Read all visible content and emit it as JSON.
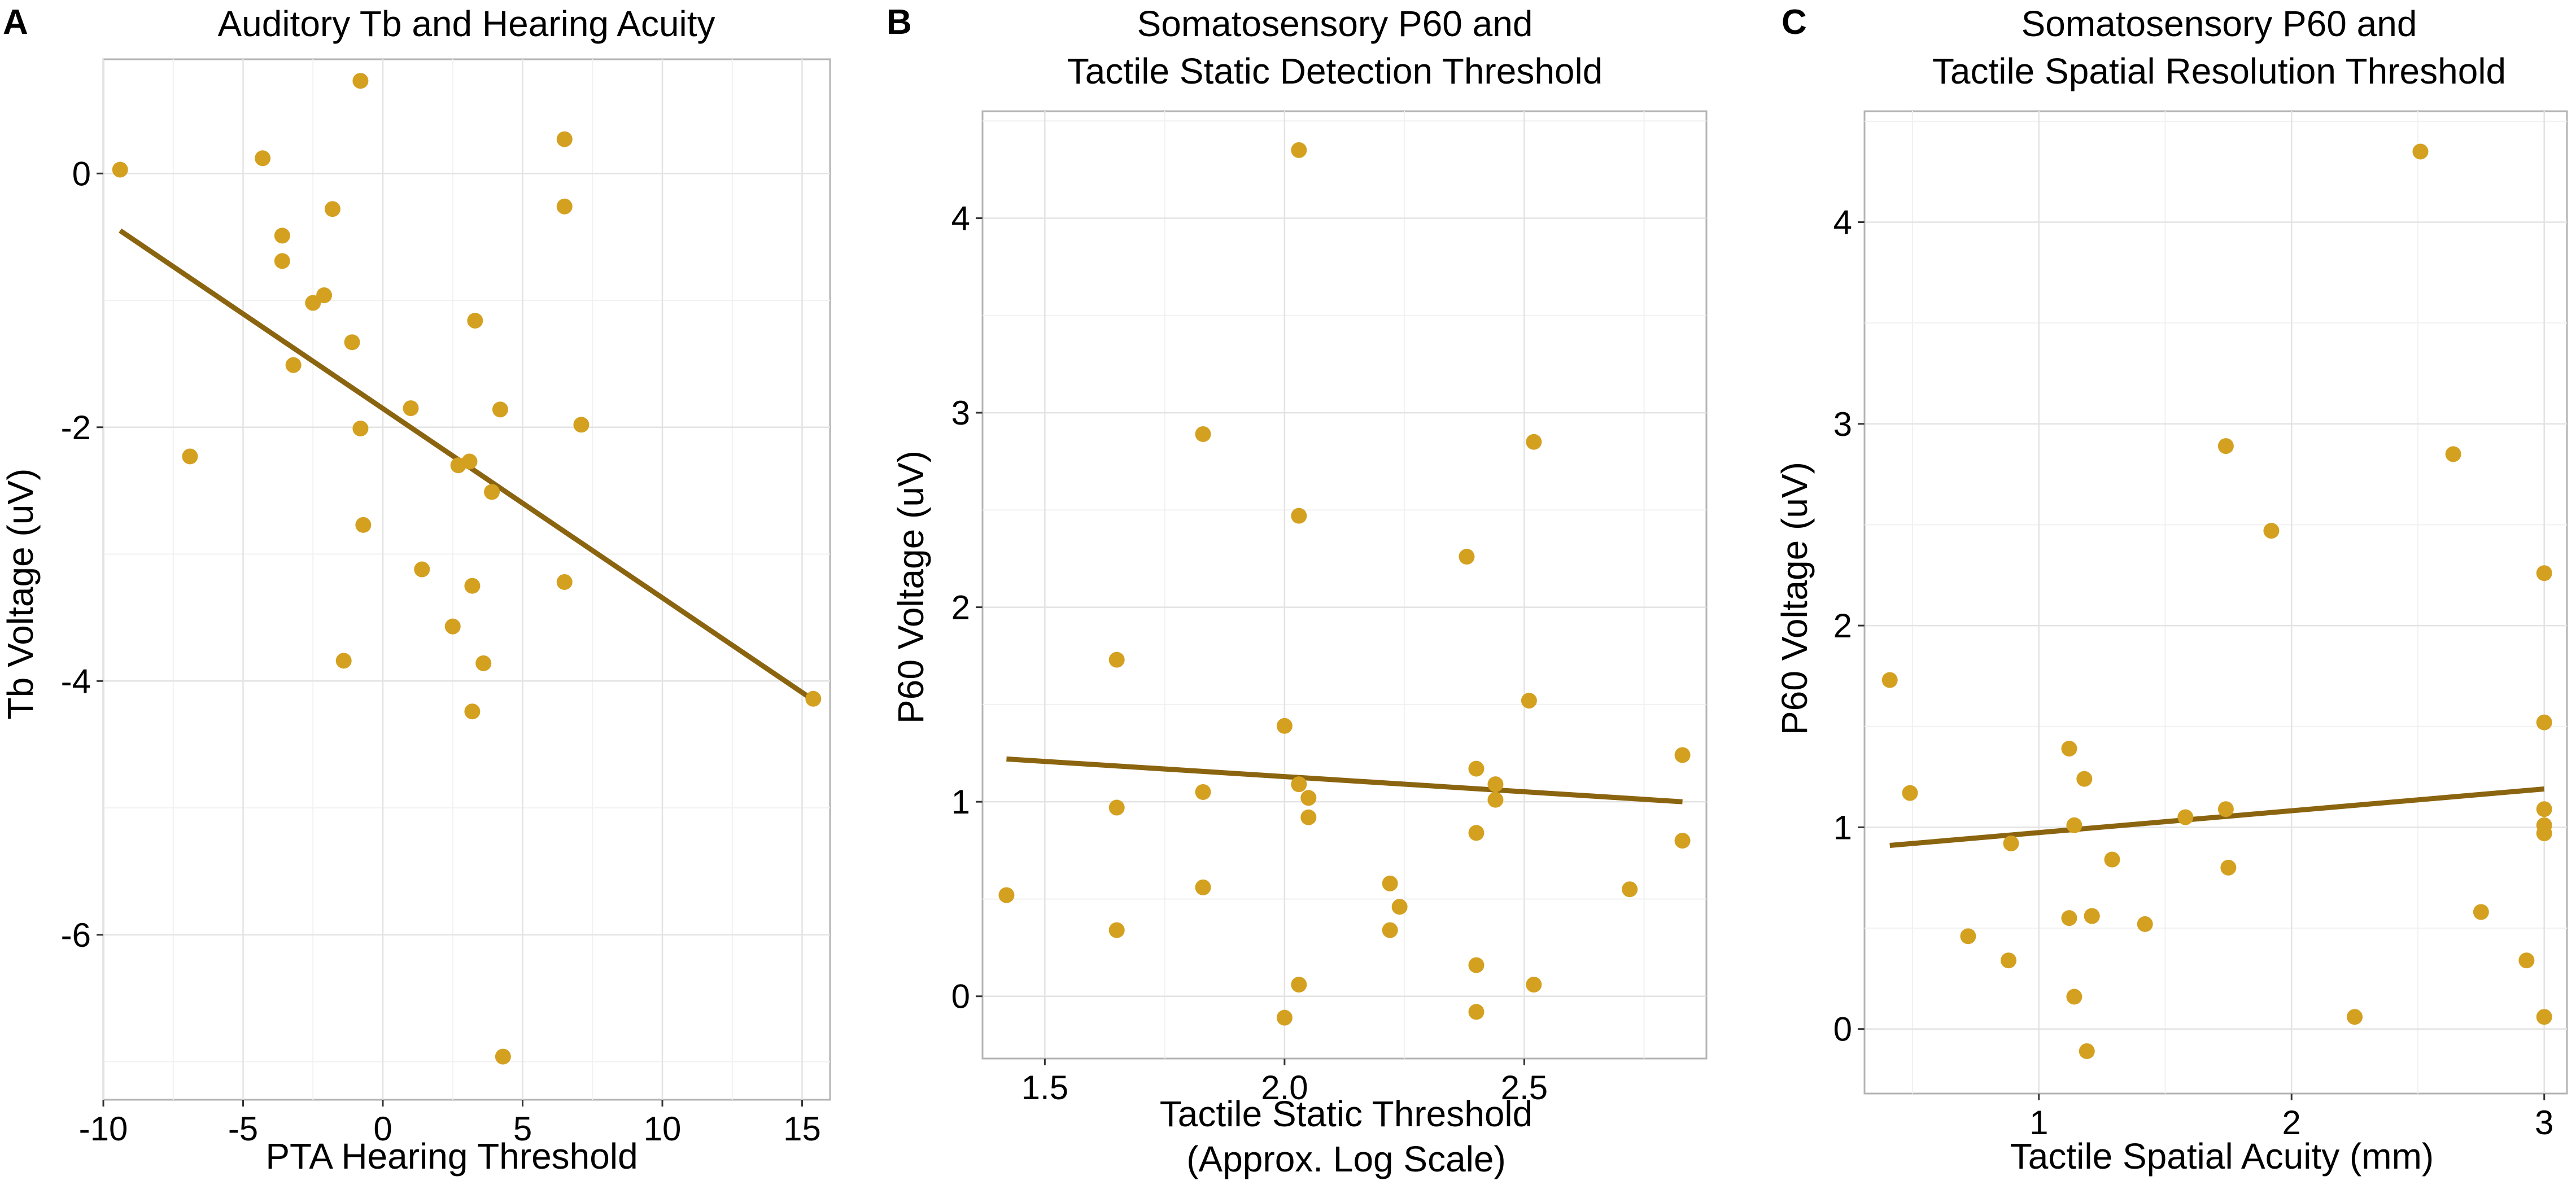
{
  "colors": {
    "point": "#D4A020",
    "line": "#8B6410"
  },
  "chart_data": [
    {
      "type": "scatter",
      "panel": "A",
      "title_lines": [
        "Auditory Tb and Hearing Acuity"
      ],
      "xlabel_lines": [
        "PTA Hearing Threshold"
      ],
      "ylabel": "Tb Voltage (uV)",
      "xlim": [
        -10,
        16
      ],
      "ylim": [
        -7.3,
        0.9
      ],
      "xticks": [
        -10,
        -5,
        0,
        5,
        10,
        15
      ],
      "xtick_labels": [
        "-10",
        "-5",
        "0",
        "5",
        "10",
        "15"
      ],
      "yticks": [
        -6,
        -4,
        -2,
        0
      ],
      "ytick_labels": [
        "-6",
        "-4",
        "-2",
        "0"
      ],
      "x": [
        -9.4,
        -6.9,
        -4.3,
        -3.6,
        -3.6,
        -3.2,
        -2.5,
        -2.1,
        -1.8,
        -1.4,
        -1.1,
        -0.8,
        -0.8,
        -0.7,
        1.0,
        1.4,
        2.5,
        2.7,
        3.1,
        3.2,
        3.2,
        3.3,
        3.6,
        3.9,
        4.2,
        4.3,
        6.5,
        6.5,
        6.5,
        7.1,
        15.4
      ],
      "y": [
        0.03,
        -2.23,
        0.12,
        -0.49,
        -0.69,
        -1.51,
        -1.02,
        -0.96,
        -0.28,
        -3.84,
        -1.33,
        0.73,
        -2.01,
        -2.77,
        -1.85,
        -3.12,
        -3.57,
        -2.3,
        -2.27,
        -4.24,
        -3.25,
        -1.16,
        -3.86,
        -2.51,
        -1.86,
        -6.96,
        0.27,
        -0.26,
        -3.22,
        -1.98,
        -4.14
      ],
      "fit": {
        "x": [
          -9.4,
          15.4
        ],
        "y": [
          -0.45,
          -4.15
        ]
      }
    },
    {
      "type": "scatter",
      "panel": "B",
      "title_lines": [
        "Somatosensory P60 and",
        "Tactile Static Detection Threshold"
      ],
      "xlabel_lines": [
        "Tactile Static Threshold",
        "(Approx. Log Scale)"
      ],
      "ylabel": "P60 Voltage (uV)",
      "xlim": [
        1.37,
        2.88
      ],
      "ylim": [
        -0.32,
        4.55
      ],
      "xticks": [
        1.5,
        2.0,
        2.5
      ],
      "xtick_labels": [
        "1.5",
        "2.0",
        "2.5"
      ],
      "yticks": [
        0,
        1,
        2,
        3,
        4
      ],
      "ytick_labels": [
        "0",
        "1",
        "2",
        "3",
        "4"
      ],
      "x": [
        1.42,
        1.65,
        1.65,
        1.65,
        1.83,
        1.83,
        1.83,
        2.0,
        2.0,
        2.03,
        2.03,
        2.03,
        2.03,
        2.05,
        2.05,
        2.22,
        2.22,
        2.24,
        2.38,
        2.4,
        2.4,
        2.4,
        2.4,
        2.44,
        2.44,
        2.51,
        2.52,
        2.52,
        2.72,
        2.83,
        2.83
      ],
      "y": [
        0.52,
        1.73,
        0.97,
        0.34,
        2.89,
        1.05,
        0.56,
        1.39,
        -0.11,
        4.35,
        2.47,
        1.09,
        0.06,
        1.02,
        0.92,
        0.58,
        0.34,
        0.46,
        2.26,
        1.17,
        0.84,
        0.16,
        -0.08,
        1.09,
        1.01,
        1.52,
        2.85,
        0.06,
        0.55,
        1.24,
        0.8
      ],
      "fit": {
        "x": [
          1.42,
          2.83
        ],
        "y": [
          1.22,
          1.0
        ]
      }
    },
    {
      "type": "scatter",
      "panel": "C",
      "title_lines": [
        "Somatosensory P60 and",
        "Tactile Spatial Resolution Threshold"
      ],
      "xlabel_lines": [
        "Tactile Spatial Acuity (mm)"
      ],
      "ylabel": "P60 Voltage (uV)",
      "xlim": [
        0.31,
        3.09
      ],
      "ylim": [
        -0.32,
        4.55
      ],
      "xticks": [
        1,
        2,
        3
      ],
      "xtick_labels": [
        "1",
        "2",
        "3"
      ],
      "yticks": [
        0,
        1,
        2,
        3,
        4
      ],
      "ytick_labels": [
        "0",
        "1",
        "2",
        "3",
        "4"
      ],
      "x": [
        0.41,
        0.49,
        0.72,
        0.88,
        0.89,
        1.12,
        1.12,
        1.14,
        1.14,
        1.18,
        1.19,
        1.21,
        1.21,
        1.29,
        1.42,
        1.58,
        1.74,
        1.74,
        1.75,
        1.92,
        2.25,
        2.51,
        2.64,
        2.75,
        2.93,
        3.0,
        3.0,
        3.0,
        3.0,
        3.0,
        3.0
      ],
      "y": [
        1.73,
        1.17,
        0.46,
        0.34,
        0.92,
        1.39,
        0.55,
        1.01,
        0.16,
        1.24,
        -0.11,
        0.56,
        0.56,
        0.84,
        0.52,
        1.05,
        2.89,
        1.09,
        0.8,
        2.47,
        0.06,
        4.35,
        2.85,
        0.58,
        0.34,
        2.26,
        1.52,
        1.09,
        1.01,
        0.97,
        0.06
      ],
      "fit": {
        "x": [
          0.41,
          3.0
        ],
        "y": [
          0.91,
          1.19
        ]
      }
    }
  ]
}
